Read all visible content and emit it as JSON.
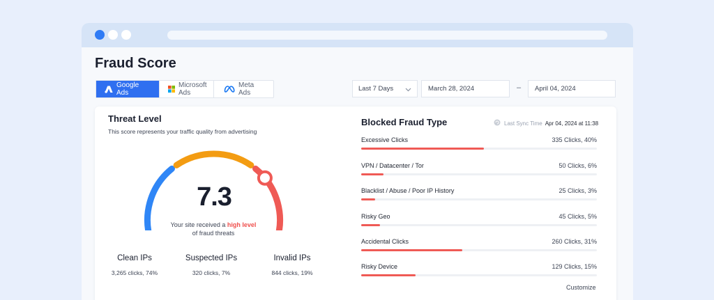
{
  "page": {
    "title": "Fraud Score"
  },
  "tabs": [
    {
      "label": "Google Ads",
      "icon": "google-ads-icon",
      "active": true
    },
    {
      "label": "Microsoft Ads",
      "icon": "microsoft-icon",
      "active": false
    },
    {
      "label": "Meta Ads",
      "icon": "meta-icon",
      "active": false
    }
  ],
  "filters": {
    "range": "Last 7 Days",
    "date_from": "March 28, 2024",
    "date_sep": "–",
    "date_to": "April 04, 2024"
  },
  "threat": {
    "title": "Threat Level",
    "subtitle": "This score represents your traffic quality from advertising",
    "score": "7.3",
    "score_fraction": 0.73,
    "caption_prefix": "Your site received a ",
    "caption_highlight": "high level",
    "caption_suffix": "of fraud threats",
    "colors": {
      "low": "#2f86f6",
      "mid": "#f39c12",
      "high": "#ef5a55"
    }
  },
  "ip_stats": [
    {
      "label": "Clean IPs",
      "value": "3,265 clicks, 74%"
    },
    {
      "label": "Suspected IPs",
      "value": "320 clicks, 7%"
    },
    {
      "label": "Invalid IPs",
      "value": "844 clicks, 19%"
    }
  ],
  "blocked": {
    "title": "Blocked Fraud Type",
    "sync_label": "Last Sync Time",
    "sync_time": "Apr 04, 2024 at 11:38",
    "bar_color": "#ef5a55",
    "rows": [
      {
        "name": "Excessive Clicks",
        "count": "335 Clicks, 40%",
        "fraction": 0.52
      },
      {
        "name": "VPN / Datacenter / Tor",
        "count": "50 Clicks, 6%",
        "fraction": 0.095
      },
      {
        "name": "Blacklist / Abuse / Poor IP History",
        "count": "25 Clicks, 3%",
        "fraction": 0.06
      },
      {
        "name": "Risky Geo",
        "count": "45 Clicks, 5%",
        "fraction": 0.08
      },
      {
        "name": "Accidental Clicks",
        "count": "260 Clicks, 31%",
        "fraction": 0.43
      },
      {
        "name": "Risky Device",
        "count": "129 Clicks, 15%",
        "fraction": 0.23
      }
    ],
    "customize_label": "Customize"
  }
}
